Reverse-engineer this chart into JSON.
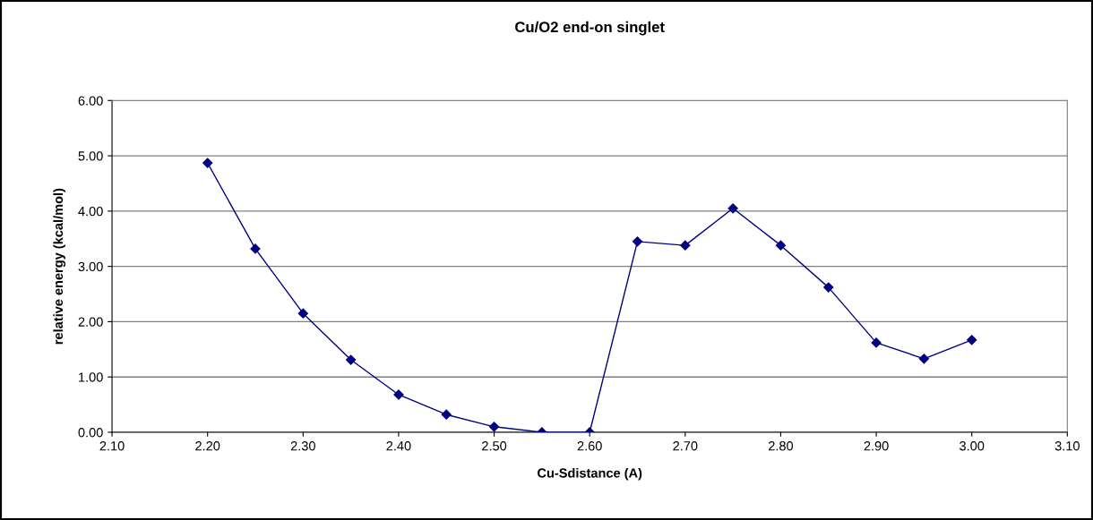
{
  "chart_data": {
    "type": "line",
    "title": "Cu/O2 end-on singlet",
    "xlabel": "Cu-Sdistance (A)",
    "ylabel": "relative energy (kcal/mol)",
    "x": [
      2.2,
      2.25,
      2.3,
      2.35,
      2.4,
      2.45,
      2.5,
      2.55,
      2.6,
      2.65,
      2.7,
      2.75,
      2.8,
      2.85,
      2.9,
      2.95,
      3.0
    ],
    "series": [
      {
        "color": "#000080",
        "values": [
          4.87,
          3.32,
          2.15,
          1.31,
          0.68,
          0.32,
          0.1,
          0.0,
          0.0,
          3.45,
          3.38,
          4.05,
          3.38,
          2.62,
          1.62,
          1.33,
          1.67
        ]
      }
    ],
    "xlim": [
      2.1,
      3.1
    ],
    "xticks": [
      {
        "value": 2.1,
        "label": "2.10"
      },
      {
        "value": 2.2,
        "label": "2.20"
      },
      {
        "value": 2.3,
        "label": "2.30"
      },
      {
        "value": 2.4,
        "label": "2.40"
      },
      {
        "value": 2.5,
        "label": "2.50"
      },
      {
        "value": 2.6,
        "label": "2.60"
      },
      {
        "value": 2.7,
        "label": "2.70"
      },
      {
        "value": 2.8,
        "label": "2.80"
      },
      {
        "value": 2.9,
        "label": "2.90"
      },
      {
        "value": 3.0,
        "label": "3.00"
      },
      {
        "value": 3.1,
        "label": "3.10"
      }
    ],
    "ylim": [
      0,
      6
    ],
    "yticks": [
      {
        "value": 0,
        "label": "0.00"
      },
      {
        "value": 1,
        "label": "1.00"
      },
      {
        "value": 2,
        "label": "2.00"
      },
      {
        "value": 3,
        "label": "3.00"
      },
      {
        "value": 4,
        "label": "4.00"
      },
      {
        "value": 5,
        "label": "5.00"
      },
      {
        "value": 6,
        "label": "6.00"
      }
    ],
    "grid": "y",
    "marker": "diamond",
    "line_style": "solid"
  }
}
